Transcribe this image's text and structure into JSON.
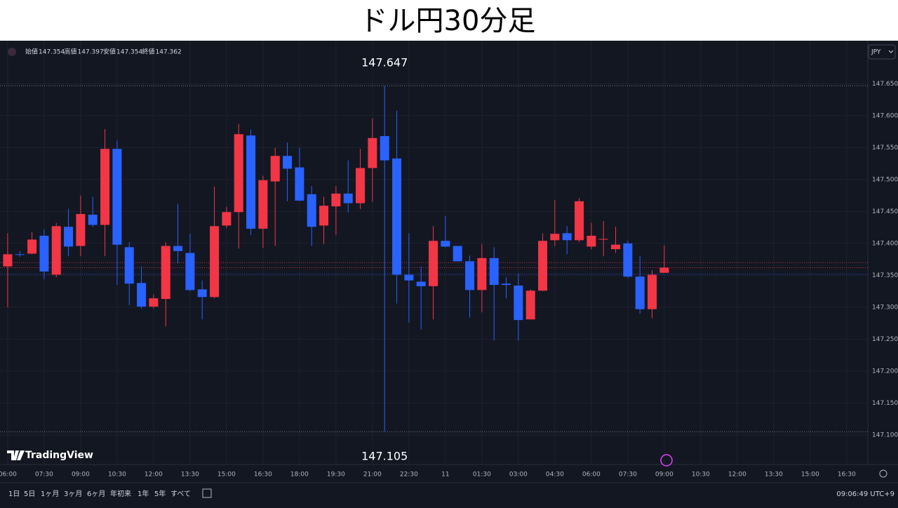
{
  "title": "ドル円30分足",
  "chart_data": {
    "type": "candlestick",
    "up_color": "#f23645",
    "down_color": "#2962ff",
    "grid": true,
    "ohlc_header": {
      "labels": [
        "始値",
        "高値",
        "安値",
        "終値"
      ],
      "values": [
        147.354,
        147.397,
        147.354,
        147.362
      ]
    },
    "open": [
      147.364,
      147.383,
      147.384,
      147.412,
      147.351,
      147.426,
      147.396,
      147.445,
      147.429,
      147.548,
      147.394,
      147.338,
      147.301,
      147.313,
      147.396,
      147.385,
      147.328,
      147.316,
      147.428,
      147.449,
      147.569,
      147.423,
      147.497,
      147.537,
      147.519,
      147.477,
      147.428,
      147.458,
      147.478,
      147.463,
      147.518,
      147.568,
      147.533,
      147.351,
      147.34,
      147.333,
      147.404,
      147.396,
      147.372,
      147.327,
      147.377,
      147.337,
      147.334,
      147.281,
      147.326,
      147.405,
      147.416,
      147.405,
      147.395,
      147.407,
      147.391,
      147.4,
      147.348,
      147.297,
      147.354
    ],
    "high": [
      147.416,
      147.388,
      147.418,
      147.422,
      147.432,
      147.454,
      147.475,
      147.473,
      147.579,
      147.561,
      147.402,
      147.364,
      147.32,
      147.402,
      147.462,
      147.415,
      147.342,
      147.489,
      147.457,
      147.587,
      147.578,
      147.506,
      147.55,
      147.558,
      147.55,
      147.49,
      147.473,
      147.49,
      147.53,
      147.548,
      147.596,
      147.647,
      147.608,
      147.416,
      147.364,
      147.427,
      147.443,
      147.396,
      147.381,
      147.399,
      147.394,
      147.347,
      147.353,
      147.328,
      147.416,
      147.468,
      147.427,
      147.471,
      147.432,
      147.435,
      147.426,
      147.404,
      147.38,
      147.358,
      147.397
    ],
    "low": [
      147.3,
      147.379,
      147.383,
      147.344,
      147.347,
      147.38,
      147.38,
      147.426,
      147.38,
      147.335,
      147.303,
      147.298,
      147.298,
      147.27,
      147.369,
      147.325,
      147.281,
      147.314,
      147.424,
      147.392,
      147.413,
      147.393,
      147.396,
      147.466,
      147.466,
      147.396,
      147.399,
      147.413,
      147.448,
      147.454,
      147.465,
      147.105,
      147.306,
      147.276,
      147.265,
      147.281,
      147.394,
      147.372,
      147.284,
      147.292,
      147.248,
      147.314,
      147.248,
      147.281,
      147.325,
      147.396,
      147.383,
      147.402,
      147.391,
      147.38,
      147.385,
      147.346,
      147.29,
      147.283,
      147.354
    ],
    "close": [
      147.383,
      147.382,
      147.406,
      147.356,
      147.427,
      147.395,
      147.446,
      147.429,
      147.548,
      147.398,
      147.337,
      147.301,
      147.314,
      147.396,
      147.388,
      147.327,
      147.316,
      147.427,
      147.449,
      147.571,
      147.423,
      147.499,
      147.537,
      147.517,
      147.467,
      147.426,
      147.459,
      147.478,
      147.463,
      147.518,
      147.565,
      147.53,
      147.351,
      147.342,
      147.333,
      147.404,
      147.395,
      147.372,
      147.327,
      147.377,
      147.335,
      147.335,
      147.28,
      147.326,
      147.404,
      147.415,
      147.405,
      147.466,
      147.412,
      147.407,
      147.398,
      147.348,
      147.297,
      147.351,
      147.362
    ],
    "xlim": [
      -0.63,
      70.74
    ],
    "xticks": [
      {
        "value": 0,
        "label": "06:00"
      },
      {
        "value": 3,
        "label": "07:30"
      },
      {
        "value": 6,
        "label": "09:00"
      },
      {
        "value": 9,
        "label": "10:30"
      },
      {
        "value": 12,
        "label": "12:00"
      },
      {
        "value": 15,
        "label": "13:30"
      },
      {
        "value": 18,
        "label": "15:00"
      },
      {
        "value": 21,
        "label": "16:30"
      },
      {
        "value": 24,
        "label": "18:00"
      },
      {
        "value": 27,
        "label": "19:30"
      },
      {
        "value": 30,
        "label": "21:00"
      },
      {
        "value": 33,
        "label": "22:30"
      },
      {
        "value": 36,
        "label": "11"
      },
      {
        "value": 39,
        "label": "01:30"
      },
      {
        "value": 42,
        "label": "03:00"
      },
      {
        "value": 45,
        "label": "04:30"
      },
      {
        "value": 48,
        "label": "06:00"
      },
      {
        "value": 51,
        "label": "07:30"
      },
      {
        "value": 54,
        "label": "09:00"
      },
      {
        "value": 57,
        "label": "10:30"
      },
      {
        "value": 60,
        "label": "12:00"
      },
      {
        "value": 63,
        "label": "13:30"
      },
      {
        "value": 66,
        "label": "15:00"
      },
      {
        "value": 69,
        "label": "16:30"
      }
    ],
    "ylim": [
      147.056,
      147.713
    ],
    "yticks": [
      {
        "value": 147.1,
        "label": "147.100"
      },
      {
        "value": 147.15,
        "label": "147.150"
      },
      {
        "value": 147.2,
        "label": "147.200"
      },
      {
        "value": 147.25,
        "label": "147.250"
      },
      {
        "value": 147.3,
        "label": "147.300"
      },
      {
        "value": 147.35,
        "label": "147.350"
      },
      {
        "value": 147.4,
        "label": "147.400"
      },
      {
        "value": 147.45,
        "label": "147.450"
      },
      {
        "value": 147.5,
        "label": "147.500"
      },
      {
        "value": 147.55,
        "label": "147.550"
      },
      {
        "value": 147.6,
        "label": "147.600"
      },
      {
        "value": 147.65,
        "label": "147.650"
      }
    ],
    "high_marker": 147.647,
    "low_marker": 147.105,
    "price_lines": [
      {
        "value": 147.37,
        "color": "#f23645"
      },
      {
        "value": 147.362,
        "color": "#f23645"
      },
      {
        "value": 147.352,
        "color": "#2962ff"
      }
    ],
    "currency": "JPY"
  },
  "brand": "TradingView",
  "toolbar": {
    "ranges": [
      "1日",
      "5日",
      "1ヶ月",
      "3ヶ月",
      "6ヶ月",
      "年初来",
      "1年",
      "5年",
      "すべて"
    ],
    "clock": "09:06:49 UTC+9"
  }
}
